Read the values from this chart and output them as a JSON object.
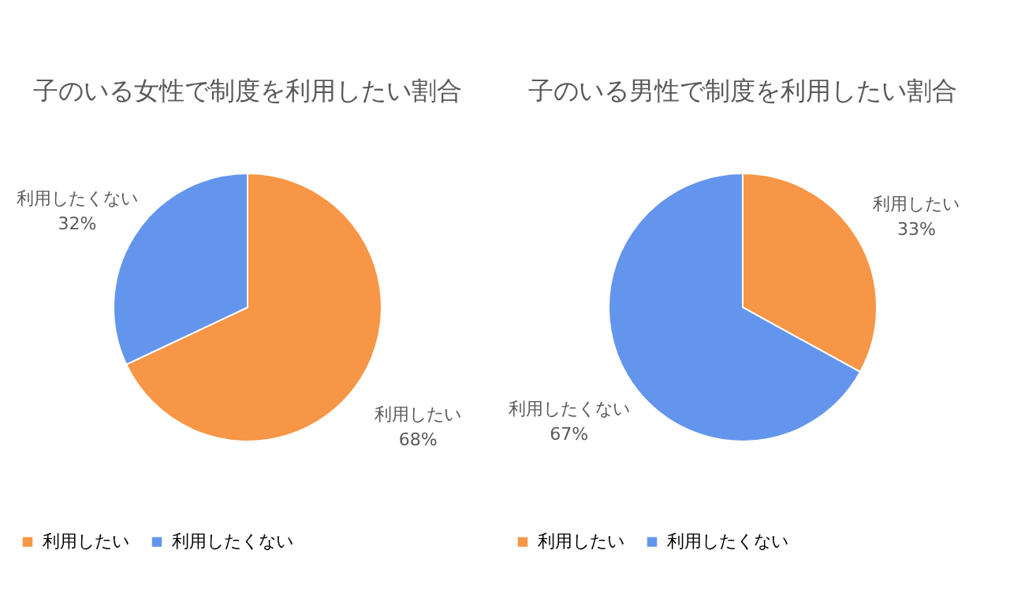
{
  "chart_data": [
    {
      "type": "pie",
      "title": "子のいる女性で制度を利用したい割合",
      "categories": [
        "利用したい",
        "利用したくない"
      ],
      "values": [
        68,
        32
      ],
      "colors": [
        "#f79646",
        "#6495ed"
      ],
      "value_labels": [
        "68%",
        "32%"
      ],
      "legend": "bottom"
    },
    {
      "type": "pie",
      "title": "子のいる男性で制度を利用したい割合",
      "categories": [
        "利用したい",
        "利用したくない"
      ],
      "values": [
        33,
        67
      ],
      "colors": [
        "#f79646",
        "#6495ed"
      ],
      "value_labels": [
        "33%",
        "67%"
      ],
      "legend": "bottom"
    }
  ]
}
